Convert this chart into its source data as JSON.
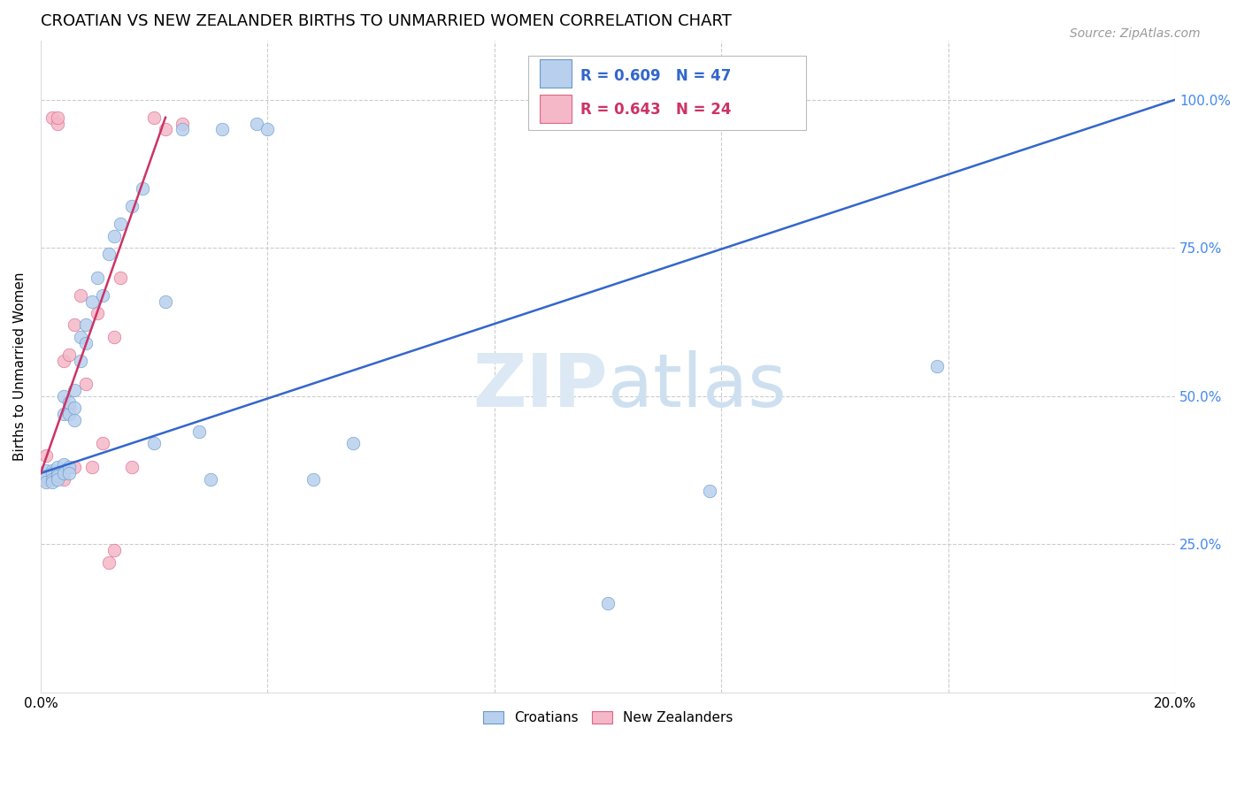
{
  "title": "CROATIAN VS NEW ZEALANDER BIRTHS TO UNMARRIED WOMEN CORRELATION CHART",
  "source": "Source: ZipAtlas.com",
  "ylabel": "Births to Unmarried Women",
  "xlim": [
    0.0,
    0.2
  ],
  "ylim": [
    0.0,
    1.1
  ],
  "grid_color": "#cccccc",
  "background_color": "#ffffff",
  "croatian_color": "#b8d0ed",
  "croatian_edge_color": "#6699cc",
  "nz_color": "#f4b8c8",
  "nz_edge_color": "#dd6688",
  "croatian_line_color": "#3366cc",
  "nz_line_color": "#cc3366",
  "marker_size": 110,
  "title_fontsize": 13,
  "axis_label_fontsize": 11,
  "tick_fontsize": 11,
  "source_fontsize": 10,
  "croatian_x": [
    0.001,
    0.001,
    0.001,
    0.002,
    0.002,
    0.002,
    0.002,
    0.003,
    0.003,
    0.003,
    0.003,
    0.004,
    0.004,
    0.004,
    0.004,
    0.005,
    0.005,
    0.005,
    0.005,
    0.006,
    0.006,
    0.006,
    0.007,
    0.007,
    0.008,
    0.008,
    0.009,
    0.01,
    0.011,
    0.012,
    0.013,
    0.014,
    0.016,
    0.018,
    0.02,
    0.022,
    0.025,
    0.028,
    0.03,
    0.032,
    0.038,
    0.04,
    0.048,
    0.055,
    0.1,
    0.118,
    0.158
  ],
  "croatian_y": [
    0.375,
    0.365,
    0.355,
    0.375,
    0.37,
    0.36,
    0.355,
    0.38,
    0.37,
    0.365,
    0.36,
    0.385,
    0.37,
    0.47,
    0.5,
    0.38,
    0.47,
    0.49,
    0.37,
    0.46,
    0.51,
    0.48,
    0.56,
    0.6,
    0.59,
    0.62,
    0.66,
    0.7,
    0.67,
    0.74,
    0.77,
    0.79,
    0.82,
    0.85,
    0.42,
    0.66,
    0.95,
    0.44,
    0.36,
    0.95,
    0.96,
    0.95,
    0.36,
    0.42,
    0.15,
    0.34,
    0.55
  ],
  "nz_x": [
    0.001,
    0.001,
    0.002,
    0.003,
    0.003,
    0.004,
    0.004,
    0.005,
    0.005,
    0.006,
    0.006,
    0.007,
    0.008,
    0.009,
    0.01,
    0.011,
    0.012,
    0.013,
    0.013,
    0.014,
    0.016,
    0.02,
    0.022,
    0.025
  ],
  "nz_y": [
    0.4,
    0.36,
    0.97,
    0.96,
    0.97,
    0.36,
    0.56,
    0.48,
    0.57,
    0.38,
    0.62,
    0.67,
    0.52,
    0.38,
    0.64,
    0.42,
    0.22,
    0.6,
    0.24,
    0.7,
    0.38,
    0.97,
    0.95,
    0.96
  ],
  "blue_line_x0": 0.0,
  "blue_line_y0": 0.37,
  "blue_line_x1": 0.2,
  "blue_line_y1": 1.0,
  "pink_line_x0": 0.0,
  "pink_line_y0": 0.37,
  "pink_line_x1": 0.022,
  "pink_line_y1": 0.97
}
